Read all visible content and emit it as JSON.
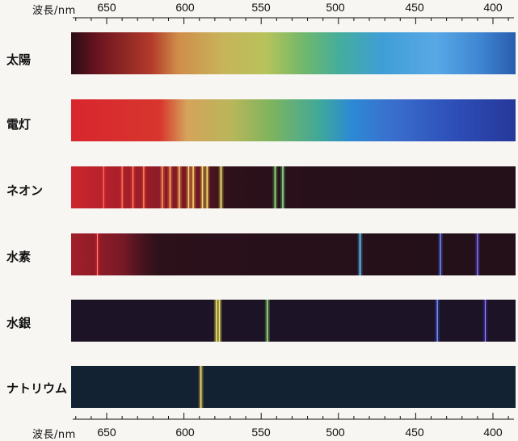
{
  "axis": {
    "top_label": "波長/nm",
    "bottom_label": "波長/nm",
    "ticks": [
      "650",
      "600",
      "550",
      "500",
      "450",
      "400"
    ]
  },
  "spectra": [
    {
      "key": "sun",
      "label": "太陽",
      "type": "continuous"
    },
    {
      "key": "lamp",
      "label": "電灯",
      "type": "continuous"
    },
    {
      "key": "neon",
      "label": "ネオン",
      "type": "emission",
      "lines_nm": [
        652,
        640,
        633,
        626,
        614,
        609,
        603,
        597,
        594,
        588,
        585,
        576,
        541,
        536
      ]
    },
    {
      "key": "hydrogen",
      "label": "水素",
      "type": "emission",
      "lines_nm": [
        656,
        486,
        434,
        410
      ]
    },
    {
      "key": "mercury",
      "label": "水銀",
      "type": "emission",
      "lines_nm": [
        579,
        577,
        546,
        436,
        405
      ]
    },
    {
      "key": "sodium",
      "label": "ナトリウム",
      "type": "emission",
      "lines_nm": [
        589
      ]
    }
  ]
}
